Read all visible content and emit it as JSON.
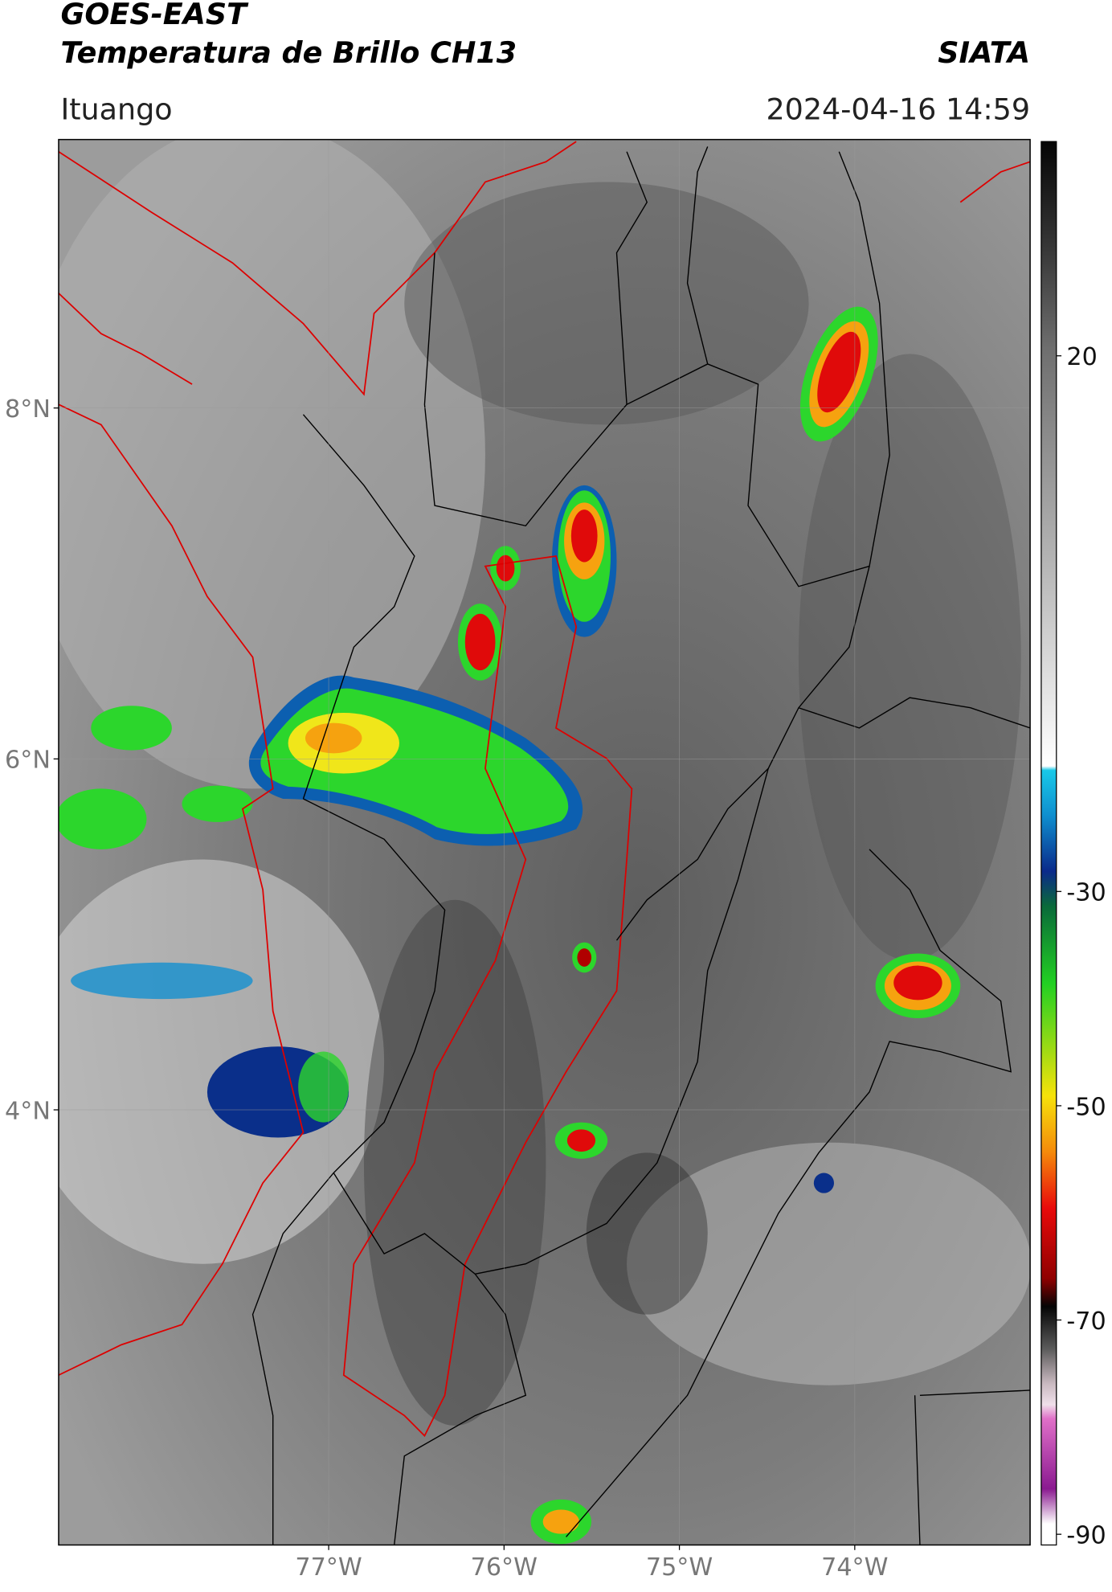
{
  "header": {
    "title": "GOES-EAST",
    "subtitle": "Temperatura de Brillo CH13",
    "agency": "SIATA",
    "location": "Ituango",
    "datetime": "2024-04-16 14:59"
  },
  "map": {
    "xlim": [
      -78.54,
      -73.0
    ],
    "ylim": [
      1.52,
      9.53
    ],
    "xticks": [
      {
        "value": -77,
        "label": "77°W"
      },
      {
        "value": -76,
        "label": "76°W"
      },
      {
        "value": -75,
        "label": "75°W"
      },
      {
        "value": -74,
        "label": "74°W"
      }
    ],
    "yticks": [
      {
        "value": 8,
        "label": "8°N"
      },
      {
        "value": 6,
        "label": "6°N"
      },
      {
        "value": 4,
        "label": "4°N"
      }
    ],
    "grid": true
  },
  "colorbar": {
    "lim": [
      -91,
      40
    ],
    "ticks": [
      20,
      -30,
      -50,
      -70,
      -90
    ]
  }
}
